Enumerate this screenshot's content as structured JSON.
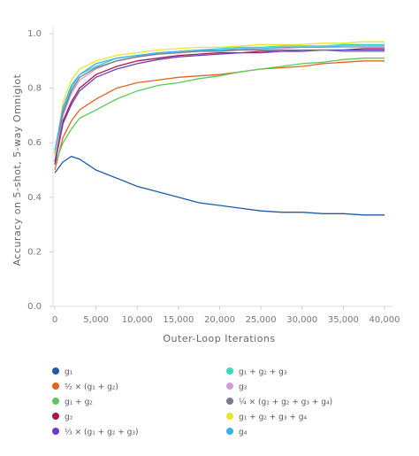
{
  "chart_data": {
    "type": "line",
    "x_label": "Outer-Loop Iterations",
    "y_label": "Accuracy on 5-shot, 5-way Omniglot",
    "x": [
      0,
      1000,
      2000,
      3000,
      5000,
      7500,
      10000,
      12500,
      15000,
      17500,
      20000,
      22500,
      25000,
      27500,
      30000,
      32500,
      35000,
      37500,
      40000
    ],
    "xlim": [
      0,
      40000
    ],
    "ylim": [
      0,
      1.0
    ],
    "xticks": [
      0,
      {
        "value": 5000,
        "label": "5,000"
      },
      {
        "value": 10000,
        "label": "10,000"
      },
      {
        "value": 15000,
        "label": "15,000"
      },
      {
        "value": 20000,
        "label": "20,000"
      },
      {
        "value": 25000,
        "label": "25,000"
      },
      {
        "value": 30000,
        "label": "30,000"
      },
      {
        "value": 35000,
        "label": "35,000"
      },
      {
        "value": 40000,
        "label": "40,000"
      }
    ],
    "yticks": [
      {
        "value": 0,
        "label": "0.0"
      },
      0.2,
      0.4,
      0.6,
      0.8,
      {
        "value": 1.0,
        "label": "1.0"
      }
    ],
    "series": [
      {
        "name": "g₁",
        "color": "#1f5aa6",
        "values": [
          0.49,
          0.53,
          0.55,
          0.54,
          0.5,
          0.47,
          0.44,
          0.42,
          0.4,
          0.38,
          0.37,
          0.36,
          0.35,
          0.345,
          0.345,
          0.34,
          0.34,
          0.335,
          0.335
        ]
      },
      {
        "name": "½ × (g₁ + g₂)",
        "color": "#e0641e",
        "values": [
          0.5,
          0.62,
          0.68,
          0.72,
          0.76,
          0.8,
          0.82,
          0.83,
          0.84,
          0.845,
          0.85,
          0.86,
          0.87,
          0.875,
          0.88,
          0.89,
          0.895,
          0.9,
          0.9
        ]
      },
      {
        "name": "g₁ + g₂",
        "color": "#5cc85c",
        "values": [
          0.52,
          0.6,
          0.65,
          0.69,
          0.72,
          0.76,
          0.79,
          0.81,
          0.82,
          0.835,
          0.845,
          0.86,
          0.87,
          0.88,
          0.89,
          0.895,
          0.905,
          0.91,
          0.91
        ]
      },
      {
        "name": "g₂",
        "color": "#a6194a",
        "values": [
          0.53,
          0.68,
          0.75,
          0.8,
          0.85,
          0.88,
          0.9,
          0.91,
          0.92,
          0.925,
          0.93,
          0.93,
          0.935,
          0.935,
          0.94,
          0.94,
          0.94,
          0.945,
          0.945
        ]
      },
      {
        "name": "⅓ × (g₁ + g₂ + g₃)",
        "color": "#6a3fbf",
        "values": [
          0.52,
          0.67,
          0.74,
          0.79,
          0.84,
          0.87,
          0.89,
          0.905,
          0.915,
          0.92,
          0.925,
          0.93,
          0.93,
          0.935,
          0.935,
          0.94,
          0.94,
          0.94,
          0.94
        ]
      },
      {
        "name": "g₁ + g₂ + g₃",
        "color": "#3fd6c3",
        "values": [
          0.56,
          0.72,
          0.8,
          0.85,
          0.88,
          0.91,
          0.92,
          0.93,
          0.935,
          0.94,
          0.945,
          0.95,
          0.95,
          0.955,
          0.955,
          0.955,
          0.96,
          0.96,
          0.96
        ]
      },
      {
        "name": "g₃",
        "color": "#d69ad6",
        "values": [
          0.55,
          0.7,
          0.78,
          0.83,
          0.87,
          0.9,
          0.915,
          0.925,
          0.93,
          0.935,
          0.94,
          0.94,
          0.945,
          0.945,
          0.95,
          0.95,
          0.95,
          0.95,
          0.95
        ]
      },
      {
        "name": "¼ × (g₁ + g₂ + g₃ + g₄)",
        "color": "#7a7a8a",
        "values": [
          0.56,
          0.71,
          0.79,
          0.84,
          0.875,
          0.9,
          0.915,
          0.925,
          0.93,
          0.935,
          0.935,
          0.94,
          0.94,
          0.94,
          0.94,
          0.94,
          0.935,
          0.935,
          0.935
        ]
      },
      {
        "name": "g₁ + g₂ + g₃ + g₄",
        "color": "#e6e62e",
        "values": [
          0.55,
          0.75,
          0.83,
          0.87,
          0.9,
          0.92,
          0.93,
          0.94,
          0.945,
          0.95,
          0.95,
          0.955,
          0.96,
          0.96,
          0.96,
          0.965,
          0.965,
          0.97,
          0.97
        ]
      },
      {
        "name": "g₄",
        "color": "#3ab0e8",
        "values": [
          0.57,
          0.73,
          0.81,
          0.85,
          0.89,
          0.91,
          0.92,
          0.93,
          0.935,
          0.94,
          0.94,
          0.945,
          0.945,
          0.95,
          0.95,
          0.95,
          0.955,
          0.955,
          0.955
        ]
      }
    ]
  }
}
